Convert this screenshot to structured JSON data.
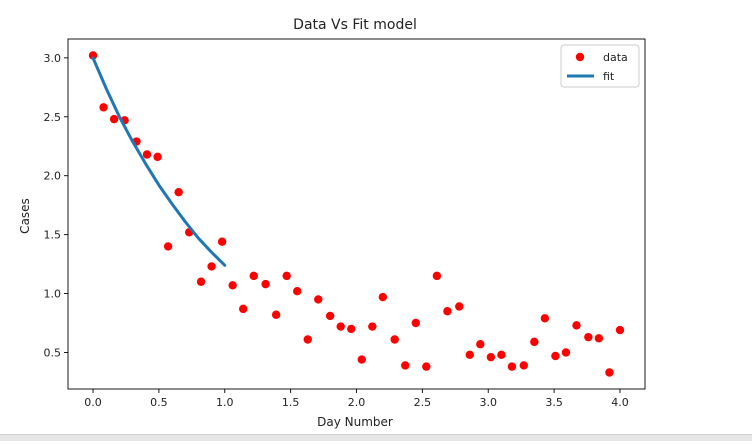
{
  "chart_data": {
    "type": "scatter",
    "title": "Data Vs Fit model",
    "xlabel": "Day Number",
    "ylabel": "Cases",
    "xlim": [
      -0.19,
      4.19
    ],
    "ylim": [
      0.19,
      3.16
    ],
    "xticks": [
      "0.0",
      "0.5",
      "1.0",
      "1.5",
      "2.0",
      "2.5",
      "3.0",
      "3.5",
      "4.0"
    ],
    "yticks": [
      "0.5",
      "1.0",
      "1.5",
      "2.0",
      "2.5",
      "3.0"
    ],
    "legend_position": "top-right",
    "grid": false,
    "series": [
      {
        "name": "data",
        "kind": "scatter",
        "color": "#ff0000",
        "x": [
          0.0,
          0.08,
          0.16,
          0.24,
          0.33,
          0.41,
          0.49,
          0.57,
          0.65,
          0.73,
          0.82,
          0.9,
          0.98,
          1.06,
          1.14,
          1.22,
          1.31,
          1.39,
          1.47,
          1.55,
          1.63,
          1.71,
          1.8,
          1.88,
          1.96,
          2.04,
          2.12,
          2.2,
          2.29,
          2.37,
          2.45,
          2.53,
          2.61,
          2.69,
          2.78,
          2.86,
          2.94,
          3.02,
          3.1,
          3.18,
          3.27,
          3.35,
          3.43,
          3.51,
          3.59,
          3.67,
          3.76,
          3.84,
          3.92,
          4.0
        ],
        "y": [
          3.02,
          2.58,
          2.48,
          2.47,
          2.29,
          2.18,
          2.16,
          1.4,
          1.86,
          1.52,
          1.1,
          1.23,
          1.44,
          1.07,
          0.87,
          1.15,
          1.08,
          0.82,
          1.15,
          1.02,
          0.61,
          0.95,
          0.81,
          0.72,
          0.7,
          0.44,
          0.72,
          0.97,
          0.61,
          0.39,
          0.75,
          0.38,
          1.15,
          0.85,
          0.89,
          0.48,
          0.57,
          0.46,
          0.48,
          0.38,
          0.39,
          0.59,
          0.79,
          0.47,
          0.5,
          0.73,
          0.63,
          0.62,
          0.33,
          0.69
        ]
      },
      {
        "name": "fit",
        "kind": "line",
        "color": "#1f77b4",
        "x": [
          0.0,
          0.1,
          0.2,
          0.3,
          0.4,
          0.5,
          0.6,
          0.7,
          0.8,
          0.9,
          1.0
        ],
        "y": [
          3.0,
          2.74,
          2.5,
          2.29,
          2.1,
          1.92,
          1.76,
          1.61,
          1.47,
          1.35,
          1.24
        ]
      }
    ]
  }
}
